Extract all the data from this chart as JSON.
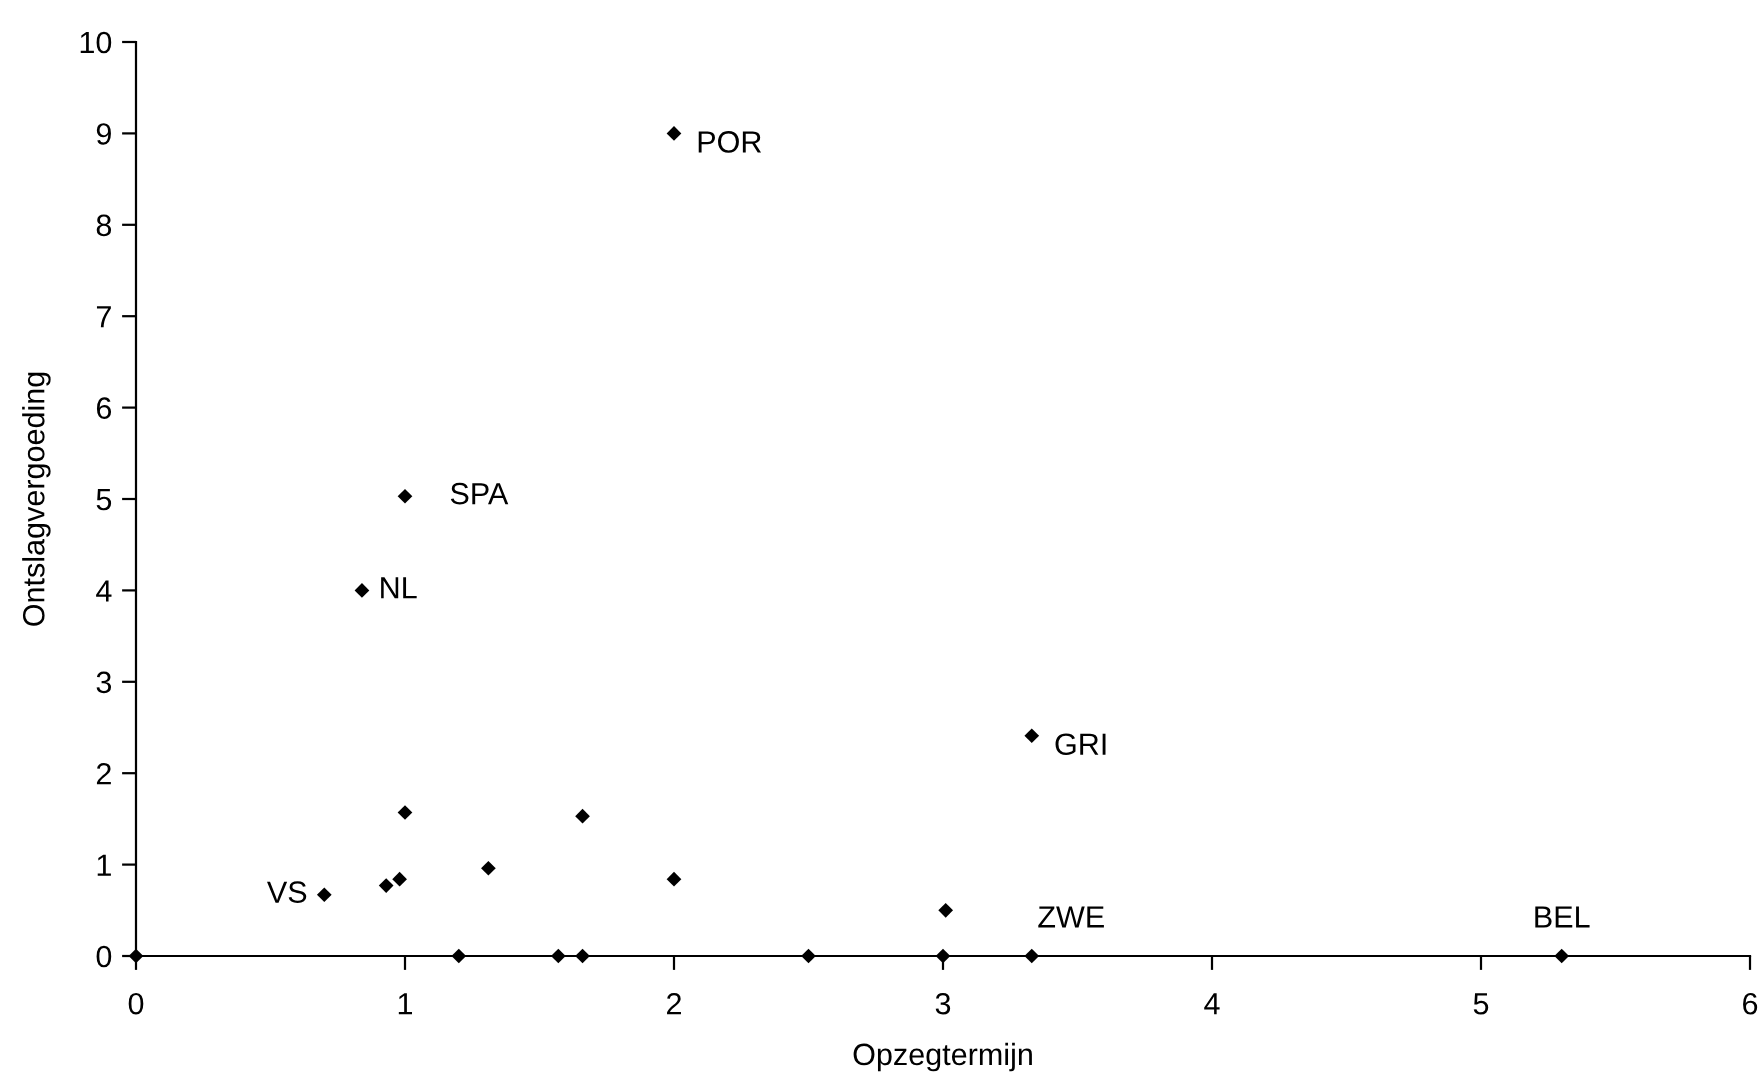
{
  "chart_data": {
    "type": "scatter",
    "xlabel": "Opzegtermijn",
    "ylabel": "Ontslagvergoeding",
    "x": [
      0,
      0.7,
      0.93,
      0.98,
      1.0,
      1.31,
      1.66,
      2.0,
      1.2,
      1.57,
      1.66,
      2.5,
      3.0,
      3.01,
      3.33,
      3.33,
      5.3,
      2.0,
      1.0,
      0.84
    ],
    "values": [
      0,
      0.67,
      0.77,
      0.84,
      1.57,
      0.96,
      1.53,
      0.84,
      0,
      0,
      0,
      0,
      0,
      0.5,
      0,
      2.41,
      0,
      9.0,
      5.03,
      4.0
    ],
    "color": "#000000",
    "marker": "diamond",
    "annotations": [
      {
        "text": "VS",
        "x": 0.7,
        "y": 0.67
      },
      {
        "text": "ZWE",
        "x": 3.33,
        "y": 0
      },
      {
        "text": "GRI",
        "x": 3.33,
        "y": 2.41
      },
      {
        "text": "BEL",
        "x": 5.3,
        "y": 0
      },
      {
        "text": "POR",
        "x": 2.0,
        "y": 9.0
      },
      {
        "text": "SPA",
        "x": 1.0,
        "y": 5.03
      },
      {
        "text": "NL",
        "x": 0.84,
        "y": 4.0
      }
    ],
    "xlim": [
      0,
      6
    ],
    "xticks": [
      0,
      1,
      2,
      3,
      4,
      5,
      6
    ],
    "ylim": [
      0,
      10
    ],
    "yticks": [
      0,
      1,
      2,
      3,
      4,
      5,
      6,
      7,
      8,
      9,
      10
    ],
    "grid": false,
    "legend": false
  }
}
